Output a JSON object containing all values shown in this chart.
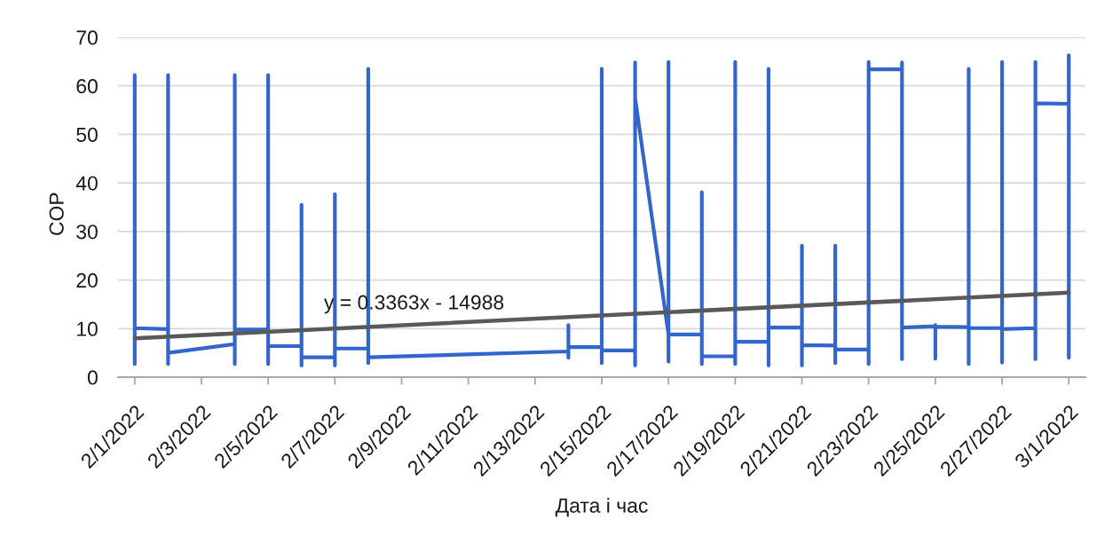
{
  "chart_data": {
    "type": "line",
    "xlabel": "Дата і час",
    "ylabel": "COP",
    "xlim": [
      "2022-01-31T12:00",
      "2022-03-01T12:00"
    ],
    "xticks": [
      {
        "value": "2022-02-01T00:00",
        "label": "2/1/2022"
      },
      {
        "value": "2022-02-03T00:00",
        "label": "2/3/2022"
      },
      {
        "value": "2022-02-05T00:00",
        "label": "2/5/2022"
      },
      {
        "value": "2022-02-07T00:00",
        "label": "2/7/2022"
      },
      {
        "value": "2022-02-09T00:00",
        "label": "2/9/2022"
      },
      {
        "value": "2022-02-11T00:00",
        "label": "2/11/2022"
      },
      {
        "value": "2022-02-13T00:00",
        "label": "2/13/2022"
      },
      {
        "value": "2022-02-15T00:00",
        "label": "2/15/2022"
      },
      {
        "value": "2022-02-17T00:00",
        "label": "2/17/2022"
      },
      {
        "value": "2022-02-19T00:00",
        "label": "2/19/2022"
      },
      {
        "value": "2022-02-21T00:00",
        "label": "2/21/2022"
      },
      {
        "value": "2022-02-23T00:00",
        "label": "2/23/2022"
      },
      {
        "value": "2022-02-25T00:00",
        "label": "2/25/2022"
      },
      {
        "value": "2022-02-27T00:00",
        "label": "2/27/2022"
      },
      {
        "value": "2022-03-01T00:00",
        "label": "3/1/2022"
      }
    ],
    "ylim": [
      0,
      70
    ],
    "yticks": [
      0,
      10,
      20,
      30,
      40,
      50,
      60,
      70
    ],
    "grid": "y",
    "series": [
      {
        "color": "#3366cc",
        "x": [
          "2022-02-01T00:00",
          "2022-02-01T00:00",
          "2022-02-01T00:00",
          "2022-02-02T00:00",
          "2022-02-02T00:00",
          "2022-02-02T00:00",
          "2022-02-02T00:00",
          "2022-02-04T00:00",
          "2022-02-04T00:00",
          "2022-02-04T00:00",
          "2022-02-04T00:00",
          "2022-02-05T00:00",
          "2022-02-05T00:00",
          "2022-02-05T00:00",
          "2022-02-05T00:00",
          "2022-02-06T00:00",
          "2022-02-06T00:00",
          "2022-02-06T00:00",
          "2022-02-06T00:00",
          "2022-02-07T00:00",
          "2022-02-07T00:00",
          "2022-02-07T00:00",
          "2022-02-07T00:00",
          "2022-02-08T00:00",
          "2022-02-08T00:00",
          "2022-02-08T00:00",
          "2022-02-08T00:00",
          "2022-02-14T00:00",
          "2022-02-14T00:00",
          "2022-02-14T00:00",
          "2022-02-14T00:00",
          "2022-02-15T00:00",
          "2022-02-15T00:00",
          "2022-02-15T00:00",
          "2022-02-15T00:00",
          "2022-02-16T00:00",
          "2022-02-16T00:00",
          "2022-02-16T00:00",
          "2022-02-16T00:00",
          "2022-02-17T00:00",
          "2022-02-17T00:00",
          "2022-02-17T00:00",
          "2022-02-17T00:00",
          "2022-02-18T00:00",
          "2022-02-18T00:00",
          "2022-02-18T00:00",
          "2022-02-18T00:00",
          "2022-02-19T00:00",
          "2022-02-19T00:00",
          "2022-02-19T00:00",
          "2022-02-19T00:00",
          "2022-02-20T00:00",
          "2022-02-20T00:00",
          "2022-02-20T00:00",
          "2022-02-20T00:00",
          "2022-02-21T00:00",
          "2022-02-21T00:00",
          "2022-02-21T00:00",
          "2022-02-21T00:00",
          "2022-02-22T00:00",
          "2022-02-22T00:00",
          "2022-02-22T00:00",
          "2022-02-22T00:00",
          "2022-02-23T00:00",
          "2022-02-23T00:00",
          "2022-02-23T00:00",
          "2022-02-23T00:00",
          "2022-02-24T00:00",
          "2022-02-24T00:00",
          "2022-02-24T00:00",
          "2022-02-24T00:00",
          "2022-02-25T00:00",
          "2022-02-25T00:00",
          "2022-02-25T00:00",
          "2022-02-25T00:00",
          "2022-02-26T00:00",
          "2022-02-26T00:00",
          "2022-02-26T00:00",
          "2022-02-26T00:00",
          "2022-02-27T00:00",
          "2022-02-27T00:00",
          "2022-02-27T00:00",
          "2022-02-27T00:00",
          "2022-02-28T00:00",
          "2022-02-28T00:00",
          "2022-02-28T00:00",
          "2022-02-28T00:00",
          "2022-03-01T00:00",
          "2022-03-01T00:00",
          "2022-03-01T00:00",
          "2022-03-01T00:00"
        ],
        "values": [
          62.2,
          2.7,
          10.1,
          9.9,
          62.2,
          2.7,
          5.0,
          6.8,
          62.2,
          2.7,
          9.8,
          9.8,
          62.2,
          2.7,
          6.4,
          6.4,
          35.5,
          2.4,
          4.1,
          4.1,
          37.7,
          2.4,
          5.9,
          5.9,
          63.5,
          2.9,
          4.1,
          5.3,
          10.7,
          4.0,
          6.2,
          6.2,
          63.5,
          2.9,
          5.5,
          5.5,
          64.8,
          2.4,
          57.5,
          8.8,
          64.9,
          3.2,
          8.8,
          8.8,
          38.1,
          2.7,
          4.3,
          4.3,
          64.9,
          2.7,
          7.3,
          7.3,
          63.5,
          2.4,
          10.2,
          10.2,
          27.1,
          2.4,
          6.6,
          6.5,
          27.1,
          2.9,
          5.7,
          5.7,
          64.9,
          2.7,
          63.4,
          63.4,
          64.8,
          3.7,
          10.2,
          10.5,
          10.7,
          3.8,
          10.4,
          10.3,
          63.5,
          2.7,
          10.1,
          10.1,
          64.9,
          3.0,
          9.9,
          10.1,
          64.9,
          3.7,
          56.4,
          56.3,
          66.3,
          4.0,
          10.2
        ]
      },
      {
        "color": "#595959",
        "x": [
          "2022-02-01T00:00",
          "2022-03-01T00:00"
        ],
        "values": [
          8.0,
          17.4
        ]
      }
    ],
    "annotations": [
      "y = 0.3363x - 14988"
    ]
  }
}
